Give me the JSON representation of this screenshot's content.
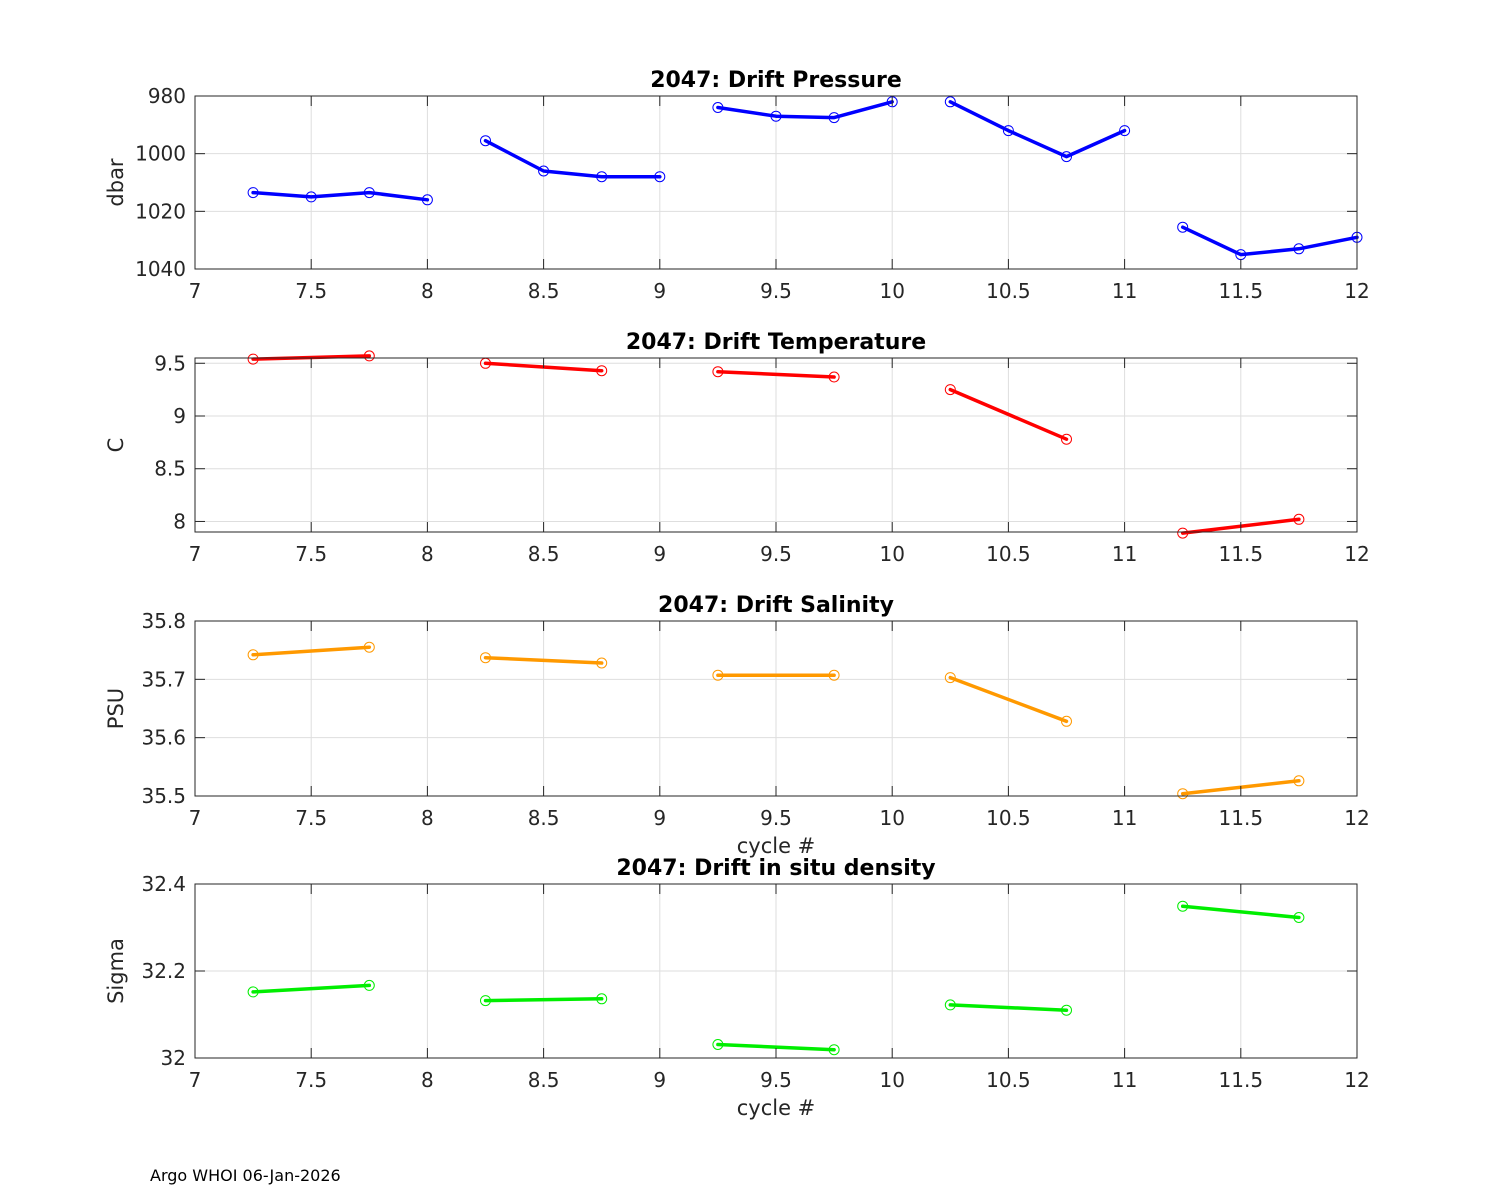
{
  "footer": "Argo WHOI 06-Jan-2026",
  "chart_data": [
    {
      "type": "line",
      "title": "2047: Drift Pressure",
      "xlabel": "",
      "ylabel": "dbar",
      "xlim": [
        7,
        12
      ],
      "ylim": [
        980,
        1040
      ],
      "y_reversed": true,
      "xticks": [
        "7",
        "7.5",
        "8",
        "8.5",
        "9",
        "9.5",
        "10",
        "10.5",
        "11",
        "11.5",
        "12"
      ],
      "yticks": [
        "980",
        "1000",
        "1020",
        "1040"
      ],
      "color": "#0000ff",
      "segments": [
        {
          "x": [
            7.25,
            7.5,
            7.75,
            8.0
          ],
          "y": [
            1013.5,
            1015,
            1013.5,
            1016
          ]
        },
        {
          "x": [
            8.25,
            8.5,
            8.75,
            9.0
          ],
          "y": [
            995.5,
            1006,
            1008,
            1008
          ]
        },
        {
          "x": [
            9.25,
            9.5,
            9.75,
            10.0
          ],
          "y": [
            984,
            987,
            987.5,
            982
          ]
        },
        {
          "x": [
            10.25,
            10.5,
            10.75,
            11.0
          ],
          "y": [
            982,
            992,
            1001,
            992
          ]
        },
        {
          "x": [
            11.25,
            11.5,
            11.75,
            12.0
          ],
          "y": [
            1025.5,
            1035,
            1033,
            1029
          ]
        }
      ]
    },
    {
      "type": "line",
      "title": "2047: Drift Temperature",
      "xlabel": "",
      "ylabel": "C",
      "xlim": [
        7,
        12
      ],
      "ylim": [
        7.9,
        9.55
      ],
      "xticks": [
        "7",
        "7.5",
        "8",
        "8.5",
        "9",
        "9.5",
        "10",
        "10.5",
        "11",
        "11.5",
        "12"
      ],
      "yticks": [
        "8",
        "8.5",
        "9",
        "9.5"
      ],
      "ytick_values": [
        8,
        8.5,
        9,
        9.5
      ],
      "color": "#ff0000",
      "segments": [
        {
          "x": [
            7.25,
            7.75
          ],
          "y": [
            9.54,
            9.57
          ]
        },
        {
          "x": [
            8.25,
            8.75
          ],
          "y": [
            9.5,
            9.43
          ]
        },
        {
          "x": [
            9.25,
            9.75
          ],
          "y": [
            9.42,
            9.37
          ]
        },
        {
          "x": [
            10.25,
            10.75
          ],
          "y": [
            9.25,
            8.78
          ]
        },
        {
          "x": [
            11.25,
            11.75
          ],
          "y": [
            7.89,
            8.02
          ]
        }
      ]
    },
    {
      "type": "line",
      "title": "2047: Drift Salinity",
      "xlabel": "cycle #",
      "ylabel": "PSU",
      "xlim": [
        7,
        12
      ],
      "ylim": [
        35.5,
        35.8
      ],
      "xticks": [
        "7",
        "7.5",
        "8",
        "8.5",
        "9",
        "9.5",
        "10",
        "10.5",
        "11",
        "11.5",
        "12"
      ],
      "yticks": [
        "35.5",
        "35.6",
        "35.7",
        "35.8"
      ],
      "color": "#ff9900",
      "segments": [
        {
          "x": [
            7.25,
            7.75
          ],
          "y": [
            35.742,
            35.755
          ]
        },
        {
          "x": [
            8.25,
            8.75
          ],
          "y": [
            35.737,
            35.728
          ]
        },
        {
          "x": [
            9.25,
            9.75
          ],
          "y": [
            35.707,
            35.707
          ]
        },
        {
          "x": [
            10.25,
            10.75
          ],
          "y": [
            35.703,
            35.628
          ]
        },
        {
          "x": [
            11.25,
            11.75
          ],
          "y": [
            35.504,
            35.526
          ]
        }
      ]
    },
    {
      "type": "line",
      "title": "2047: Drift in situ density",
      "xlabel": "cycle #",
      "ylabel": "Sigma",
      "xlim": [
        7,
        12
      ],
      "ylim": [
        32,
        32.4
      ],
      "xticks": [
        "7",
        "7.5",
        "8",
        "8.5",
        "9",
        "9.5",
        "10",
        "10.5",
        "11",
        "11.5",
        "12"
      ],
      "yticks": [
        "32",
        "32.2",
        "32.4"
      ],
      "color": "#00ee00",
      "segments": [
        {
          "x": [
            7.25,
            7.75
          ],
          "y": [
            32.152,
            32.167
          ]
        },
        {
          "x": [
            8.25,
            8.75
          ],
          "y": [
            32.132,
            32.136
          ]
        },
        {
          "x": [
            9.25,
            9.75
          ],
          "y": [
            32.031,
            32.019
          ]
        },
        {
          "x": [
            10.25,
            10.75
          ],
          "y": [
            32.122,
            32.11
          ]
        },
        {
          "x": [
            11.25,
            11.75
          ],
          "y": [
            32.349,
            32.323
          ]
        }
      ]
    }
  ]
}
